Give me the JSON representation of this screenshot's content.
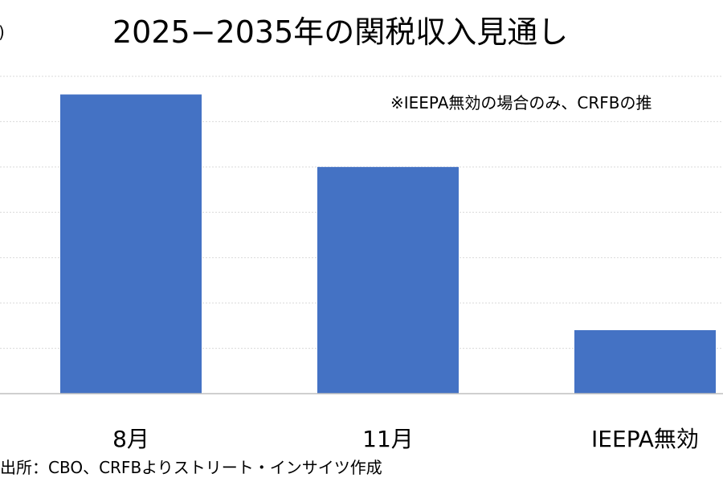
{
  "title": "2025−2035年の関税収入見通し",
  "unit_fragment": ")",
  "note": "※IEEPA無効の場合のみ、CRFBの推",
  "source": "出所：CBO、CRFBよりストリート・インサイツ作成",
  "colors": {
    "bar": "#4472c4",
    "grid": "#d9d9d9",
    "axis": "#bfbfbf"
  },
  "chart_data": {
    "type": "bar",
    "title": "2025−2035年の関税収入見通し",
    "categories": [
      "8月",
      "11月",
      "IEEPA無効"
    ],
    "values": [
      6.6,
      5.0,
      1.4
    ],
    "ylim": [
      0,
      7
    ],
    "grid": true,
    "legend": "none",
    "xlabel": "",
    "ylabel": ""
  }
}
